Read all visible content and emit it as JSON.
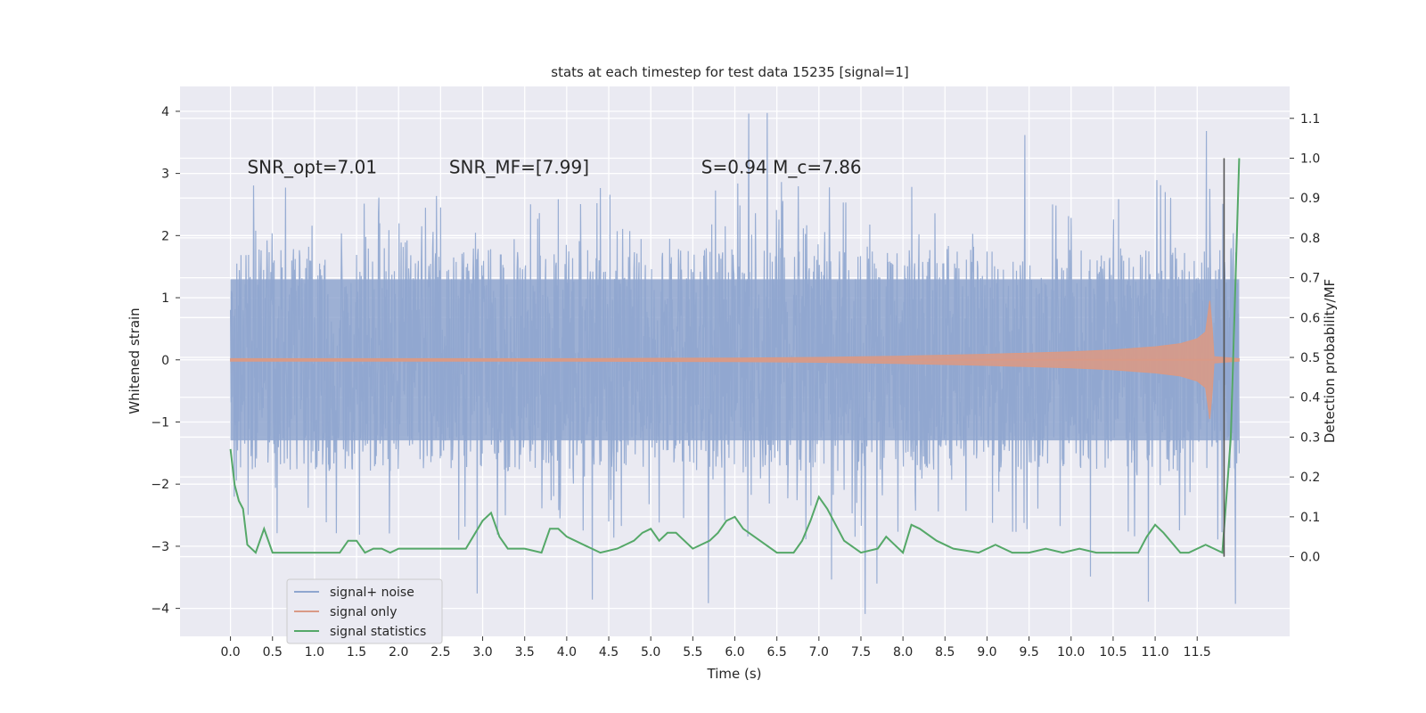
{
  "chart_data": {
    "type": "line",
    "title": "stats at each timestep for test data 15235 [signal=1]",
    "xlabel": "Time (s)",
    "ylabel": "Whitened strain",
    "y2label": "Detection probability/MF",
    "xlim": [
      -0.6,
      12.6
    ],
    "ylim": [
      -4.45,
      4.4
    ],
    "y2lim": [
      -0.2,
      1.18
    ],
    "x_ticks": [
      "0.0",
      "0.5",
      "1.0",
      "1.5",
      "2.0",
      "2.5",
      "3.0",
      "3.5",
      "4.0",
      "4.5",
      "5.0",
      "5.5",
      "6.0",
      "6.5",
      "7.0",
      "7.5",
      "8.0",
      "8.5",
      "9.0",
      "9.5",
      "10.0",
      "10.5",
      "11.0",
      "11.5"
    ],
    "y_ticks": [
      "4",
      "3",
      "2",
      "1",
      "0",
      "−1",
      "−2",
      "−3",
      "−4"
    ],
    "y2_ticks": [
      "1.1",
      "1.0",
      "0.9",
      "0.8",
      "0.7",
      "0.6",
      "0.5",
      "0.4",
      "0.3",
      "0.2",
      "0.1",
      "0.0"
    ],
    "grid": true,
    "legend_position": "lower-left",
    "annotations": [
      {
        "text": "SNR_opt=7.01",
        "x": 0.2,
        "y": 3.1
      },
      {
        "text": "SNR_MF=[7.99]",
        "x": 2.6,
        "y": 3.1
      },
      {
        "text": "S=0.94   M_c=7.86",
        "x": 5.6,
        "y": 3.1
      }
    ],
    "vline_x": 11.82,
    "noise_band": {
      "x_start": 0.0,
      "x_end": 12.0,
      "typical_max": 1.8,
      "typical_min": -1.8,
      "peak_max": 4.0,
      "peak_min": -4.1
    },
    "series": [
      {
        "name": "signal+ noise",
        "color": "#8fa6cf",
        "axis": "left"
      },
      {
        "name": "signal only",
        "color": "#d99a86",
        "axis": "left",
        "envelope": {
          "x": [
            0.0,
            4.0,
            6.0,
            7.0,
            8.0,
            9.0,
            10.0,
            10.5,
            11.0,
            11.3,
            11.5,
            11.6,
            11.65,
            11.68,
            11.7,
            12.0
          ],
          "amp": [
            0.02,
            0.02,
            0.03,
            0.04,
            0.06,
            0.09,
            0.13,
            0.16,
            0.21,
            0.26,
            0.34,
            0.45,
            0.95,
            0.5,
            0.05,
            0.02
          ]
        }
      },
      {
        "name": "signal statistics",
        "color": "#55a868",
        "axis": "right",
        "x": [
          0.0,
          0.05,
          0.1,
          0.15,
          0.2,
          0.3,
          0.4,
          0.5,
          0.6,
          0.7,
          0.8,
          0.9,
          1.0,
          1.2,
          1.3,
          1.4,
          1.5,
          1.6,
          1.7,
          1.8,
          1.9,
          2.0,
          2.1,
          2.2,
          2.4,
          2.6,
          2.8,
          3.0,
          3.1,
          3.2,
          3.3,
          3.5,
          3.7,
          3.8,
          3.9,
          4.0,
          4.2,
          4.4,
          4.6,
          4.8,
          4.9,
          5.0,
          5.1,
          5.2,
          5.3,
          5.5,
          5.7,
          5.8,
          5.9,
          6.0,
          6.1,
          6.3,
          6.5,
          6.7,
          6.8,
          6.9,
          7.0,
          7.1,
          7.3,
          7.5,
          7.7,
          7.8,
          7.9,
          8.0,
          8.1,
          8.2,
          8.4,
          8.6,
          8.9,
          9.1,
          9.3,
          9.5,
          9.7,
          9.9,
          10.1,
          10.3,
          10.5,
          10.8,
          10.9,
          11.0,
          11.1,
          11.3,
          11.4,
          11.6,
          11.7,
          11.8,
          11.9,
          12.0
        ],
        "y": [
          0.27,
          0.18,
          0.14,
          0.12,
          0.03,
          0.01,
          0.07,
          0.01,
          0.01,
          0.01,
          0.01,
          0.01,
          0.01,
          0.01,
          0.01,
          0.04,
          0.04,
          0.01,
          0.02,
          0.02,
          0.01,
          0.02,
          0.02,
          0.02,
          0.02,
          0.02,
          0.02,
          0.09,
          0.11,
          0.05,
          0.02,
          0.02,
          0.01,
          0.07,
          0.07,
          0.05,
          0.03,
          0.01,
          0.02,
          0.04,
          0.06,
          0.07,
          0.04,
          0.06,
          0.06,
          0.02,
          0.04,
          0.06,
          0.09,
          0.1,
          0.07,
          0.04,
          0.01,
          0.01,
          0.04,
          0.09,
          0.15,
          0.12,
          0.04,
          0.01,
          0.02,
          0.05,
          0.03,
          0.01,
          0.08,
          0.07,
          0.04,
          0.02,
          0.01,
          0.03,
          0.01,
          0.01,
          0.02,
          0.01,
          0.02,
          0.01,
          0.01,
          0.01,
          0.05,
          0.08,
          0.06,
          0.01,
          0.01,
          0.03,
          0.02,
          0.01,
          0.3,
          1.0
        ]
      }
    ]
  }
}
